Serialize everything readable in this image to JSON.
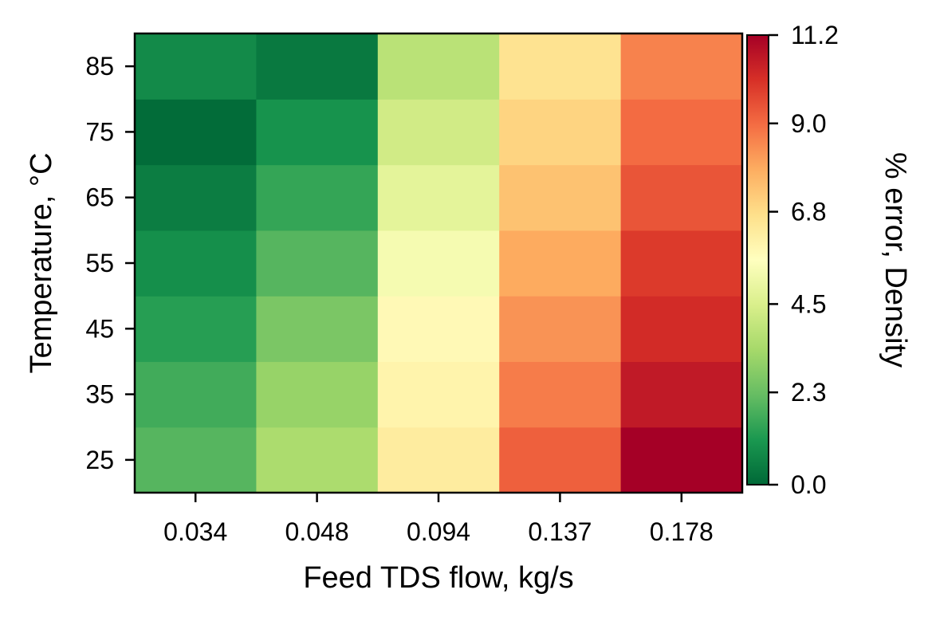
{
  "chart_data": {
    "type": "heatmap",
    "title": "",
    "xlabel": "Feed TDS flow, kg/s",
    "ylabel": "Temperature, °C",
    "x_categories": [
      "0.034",
      "0.048",
      "0.094",
      "0.137",
      "0.178"
    ],
    "y_categories": [
      "25",
      "35",
      "45",
      "55",
      "65",
      "75",
      "85"
    ],
    "values": [
      [
        2.0,
        3.5,
        6.3,
        9.2,
        11.2
      ],
      [
        1.7,
        3.1,
        6.0,
        8.7,
        10.6
      ],
      [
        1.3,
        2.6,
        5.8,
        8.3,
        10.2
      ],
      [
        0.9,
        2.0,
        5.3,
        7.9,
        9.9
      ],
      [
        0.5,
        1.5,
        4.8,
        7.4,
        9.4
      ],
      [
        0.1,
        1.0,
        4.3,
        7.0,
        9.0
      ],
      [
        0.8,
        0.4,
        3.8,
        6.6,
        8.6
      ]
    ],
    "colorbar": {
      "label": "% error, Density",
      "min": 0.0,
      "max": 11.2,
      "ticks": [
        "0.0",
        "2.3",
        "4.5",
        "6.8",
        "9.0",
        "11.2"
      ],
      "colormap": "RdYlGn_r",
      "stops": [
        "#006837",
        "#1a9850",
        "#66bd63",
        "#a6d96a",
        "#d9ef8b",
        "#ffffbf",
        "#fee08b",
        "#fdae61",
        "#f46d43",
        "#d73027",
        "#a50026"
      ]
    },
    "grid": false,
    "legend": "none"
  }
}
